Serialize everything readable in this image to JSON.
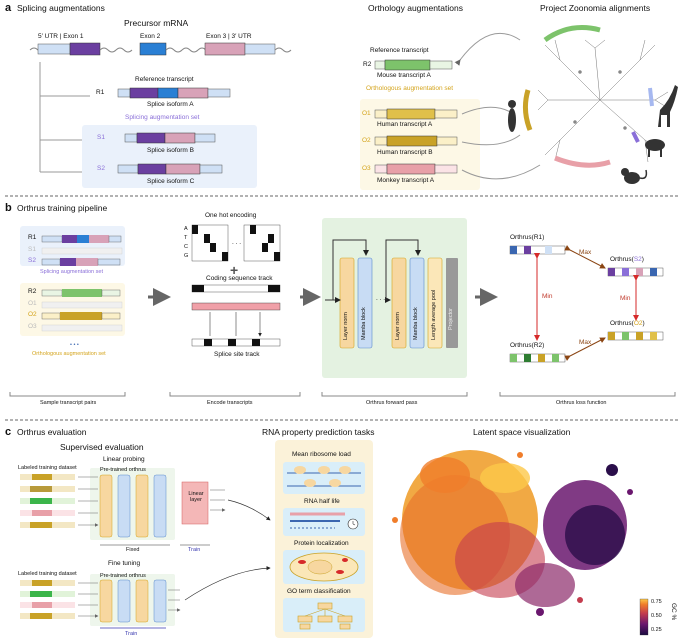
{
  "panel_a": {
    "letter": "a",
    "title_left": "Splicing augmentations",
    "title_mid": "Orthology augmentations",
    "title_right": "Project Zoonomia alignments",
    "precursor": "Precursor mRNA",
    "exon1_label": "5′ UTR | Exon 1",
    "exon2_label": "Exon 2",
    "exon3_label": "Exon 3 | 3′ UTR",
    "ref_transcript": "Reference transcript",
    "r1": "R1",
    "isoformA": "Splice isoform A",
    "splice_set": "Splicing augmentation set",
    "s1": "S1",
    "isoformB": "Splice isoform B",
    "s2": "S2",
    "isoformC": "Splice isoform C",
    "ref_transcript2": "Reference transcript",
    "r2": "R2",
    "mouseA": "Mouse transcript A",
    "ortho_set": "Orthologous augmentation set",
    "o1": "O1",
    "humanA": "Human transcript A",
    "o2": "O2",
    "humanB": "Human transcript B",
    "o3": "O3",
    "monkeyA": "Monkey transcript A"
  },
  "panel_b": {
    "letter": "b",
    "title": "Orthrus training pipeline",
    "r1": "R1",
    "s1": "S1",
    "s2": "S2",
    "splice_set": "Splicing augmentation set",
    "r2": "R2",
    "o1": "O1",
    "o2": "O2",
    "o3": "O3",
    "ortho_set": "Orthologous augmentation set",
    "dots": "• • •",
    "one_hot": "One hot encoding",
    "atcg": [
      "A",
      "T",
      "C",
      "G"
    ],
    "ellipsis": ". . .",
    "plus": "+",
    "cds_track": "Coding sequence track",
    "splice_track": "Splice site track",
    "layer_norm": "Layer norm",
    "mamba_block": "Mamba block",
    "length_pool": "Length average pool",
    "projector": "Projector",
    "orthrus_r1": "Orthrus(R1)",
    "orthrus_s2": "Orthrus(",
    "s2_tag": "S2",
    "orthrus_o2": "Orthrus(",
    "o2_tag": "O2",
    "close_paren": ")",
    "orthrus_r2": "Orthrus(R2)",
    "max": "Max",
    "min": "Min",
    "cap1": "Sample transcript pairs",
    "cap2": "Encode transcripts",
    "cap3": "Orthrus forward pass",
    "cap4": "Orthrus loss function"
  },
  "panel_c": {
    "letter": "c",
    "title": "Orthrus evaluation",
    "supervised": "Supervised evaluation",
    "linear_probing": "Linear probing",
    "labeled1": "Labeled training dataset",
    "pretrained1": "Pre-trained orthrus",
    "linear_layer": "Linear layer",
    "fixed": "Fixed",
    "train": "Train",
    "fine_tuning": "Fine tuning",
    "labeled2": "Labeled training dataset",
    "pretrained2": "Pre-trained orthrus",
    "train2": "Train",
    "rna_tasks": "RNA property prediction tasks",
    "task1": "Mean ribosome load",
    "task2": "RNA half life",
    "task3": "Protein localization",
    "task4": "GO term classification",
    "latent": "Latent space visualization",
    "cbar_ticks": [
      "0.75",
      "0.50",
      "0.25"
    ],
    "cbar_label": "GC %"
  },
  "colors": {
    "exon1": "#6b3fa0",
    "exon2": "#2a7fd4",
    "exon3": "#d8a2b8",
    "green": "#7dc36b",
    "gold": "#c9a227",
    "pink": "#e8a0a8",
    "ortho_bg": "#fdf8e6",
    "splice_bg": "#eaf1fb",
    "model_bg": "#e4f2e1",
    "task_bg": "#fbf2d9"
  }
}
